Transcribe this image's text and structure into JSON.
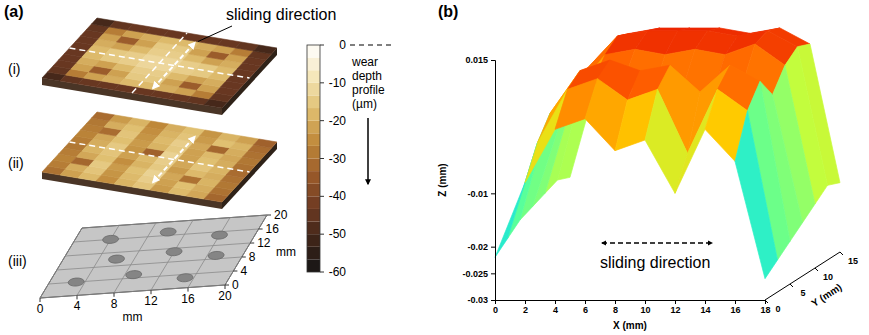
{
  "chart_data": [
    {
      "type": "heatmap",
      "panel": "(a)",
      "title": "(i)",
      "annotation": "sliding direction",
      "cells": [
        [
          -50,
          -45,
          -44,
          -44,
          -44,
          -44,
          -44,
          -44,
          -45,
          -50
        ],
        [
          -45,
          -28,
          -22,
          -20,
          -18,
          -18,
          -20,
          -22,
          -28,
          -45
        ],
        [
          -44,
          -22,
          -34,
          -22,
          -15,
          -15,
          -22,
          -34,
          -22,
          -44
        ],
        [
          -44,
          -20,
          -22,
          -18,
          -14,
          -14,
          -18,
          -22,
          -20,
          -44
        ],
        [
          -44,
          -18,
          -15,
          -14,
          -12,
          -12,
          -14,
          -15,
          -18,
          -44
        ],
        [
          -44,
          -18,
          -15,
          -14,
          -12,
          -12,
          -14,
          -15,
          -18,
          -44
        ],
        [
          -44,
          -20,
          -22,
          -18,
          -14,
          -14,
          -18,
          -22,
          -20,
          -44
        ],
        [
          -44,
          -22,
          -34,
          -22,
          -15,
          -15,
          -22,
          -34,
          -22,
          -44
        ],
        [
          -45,
          -28,
          -22,
          -20,
          -18,
          -18,
          -20,
          -22,
          -28,
          -45
        ],
        [
          -50,
          -45,
          -44,
          -44,
          -44,
          -44,
          -44,
          -44,
          -45,
          -50
        ]
      ],
      "colorbar": {
        "label": "wear depth profile (µm)",
        "lim": [
          -60,
          0
        ],
        "ticks": [
          0,
          -10,
          -20,
          -30,
          -40,
          -50,
          -60
        ]
      }
    },
    {
      "type": "heatmap",
      "title": "(ii)",
      "cells": [
        [
          -30,
          -22,
          -18,
          -25,
          -19,
          -16,
          -23,
          -18,
          -21,
          -32
        ],
        [
          -28,
          -20,
          -16,
          -24,
          -18,
          -14,
          -22,
          -17,
          -20,
          -30
        ],
        [
          -27,
          -32,
          -15,
          -23,
          -17,
          -13,
          -21,
          -30,
          -19,
          -29
        ],
        [
          -28,
          -21,
          -17,
          -25,
          -19,
          -15,
          -23,
          -18,
          -20,
          -30
        ],
        [
          -29,
          -19,
          -16,
          -22,
          -18,
          -14,
          -21,
          -16,
          -19,
          -31
        ],
        [
          -28,
          -20,
          -15,
          -24,
          -33,
          -13,
          -22,
          -17,
          -20,
          -30
        ],
        [
          -27,
          -21,
          -17,
          -23,
          -19,
          -15,
          -22,
          -18,
          -21,
          -29
        ],
        [
          -28,
          -31,
          -16,
          -24,
          -18,
          -14,
          -21,
          -32,
          -20,
          -30
        ],
        [
          -29,
          -20,
          -17,
          -25,
          -19,
          -16,
          -23,
          -17,
          -19,
          -31
        ],
        [
          -31,
          -23,
          -19,
          -26,
          -20,
          -17,
          -24,
          -19,
          -22,
          -33
        ]
      ]
    },
    {
      "type": "scatter",
      "title": "(iii)",
      "x": [
        4,
        10,
        16,
        6,
        12,
        17,
        3,
        9,
        15
      ],
      "y": [
        16,
        17,
        15,
        10,
        11,
        9,
        4,
        5,
        3
      ],
      "xlim": [
        0,
        20
      ],
      "ylim": [
        0,
        20
      ],
      "xticks": [
        0,
        4,
        8,
        12,
        16,
        20
      ],
      "yticks": [
        0,
        4,
        8,
        12,
        16,
        20
      ],
      "xlabel": "mm",
      "ylabel": "mm",
      "grid": true
    },
    {
      "type": "surface",
      "panel": "(b)",
      "annotation": "sliding direction",
      "x": [
        0,
        2,
        4,
        6,
        8,
        10,
        12,
        14,
        16,
        18
      ],
      "y": [
        0,
        2.5,
        5,
        7.5,
        10,
        12.5,
        15
      ],
      "z": [
        [
          -0.022,
          -0.008,
          0.002,
          0.004,
          -0.002,
          0.0,
          -0.01,
          0.002,
          -0.004,
          -0.026
        ],
        [
          -0.02,
          -0.002,
          0.008,
          0.01,
          0.006,
          0.008,
          -0.004,
          0.008,
          0.004,
          -0.024
        ],
        [
          -0.018,
          0.002,
          0.01,
          0.012,
          0.01,
          0.011,
          0.006,
          0.011,
          0.008,
          -0.022
        ],
        [
          -0.017,
          0.0,
          0.006,
          0.006,
          0.004,
          0.005,
          0.004,
          0.006,
          0.004,
          -0.02
        ],
        [
          -0.016,
          0.003,
          0.01,
          0.011,
          0.01,
          0.011,
          0.01,
          0.012,
          0.008,
          -0.018
        ],
        [
          -0.015,
          0.006,
          0.012,
          0.013,
          0.013,
          0.013,
          0.012,
          0.013,
          0.01,
          -0.016
        ],
        [
          -0.016,
          0.004,
          0.011,
          0.012,
          0.012,
          0.012,
          0.011,
          0.012,
          0.009,
          -0.017
        ]
      ],
      "xlim": [
        0,
        18
      ],
      "ylim": [
        0,
        15
      ],
      "zlim": [
        -0.03,
        0.015
      ],
      "xticks": [
        0,
        2,
        4,
        6,
        8,
        10,
        12,
        14,
        16,
        18
      ],
      "yticks": [
        0,
        5,
        10,
        15
      ],
      "zticks": [
        -0.03,
        -0.025,
        -0.02,
        -0.01,
        0.015
      ],
      "xlabel": "X (mm)",
      "ylabel": "Y (mm)",
      "zlabel": "Z (mm)"
    }
  ]
}
